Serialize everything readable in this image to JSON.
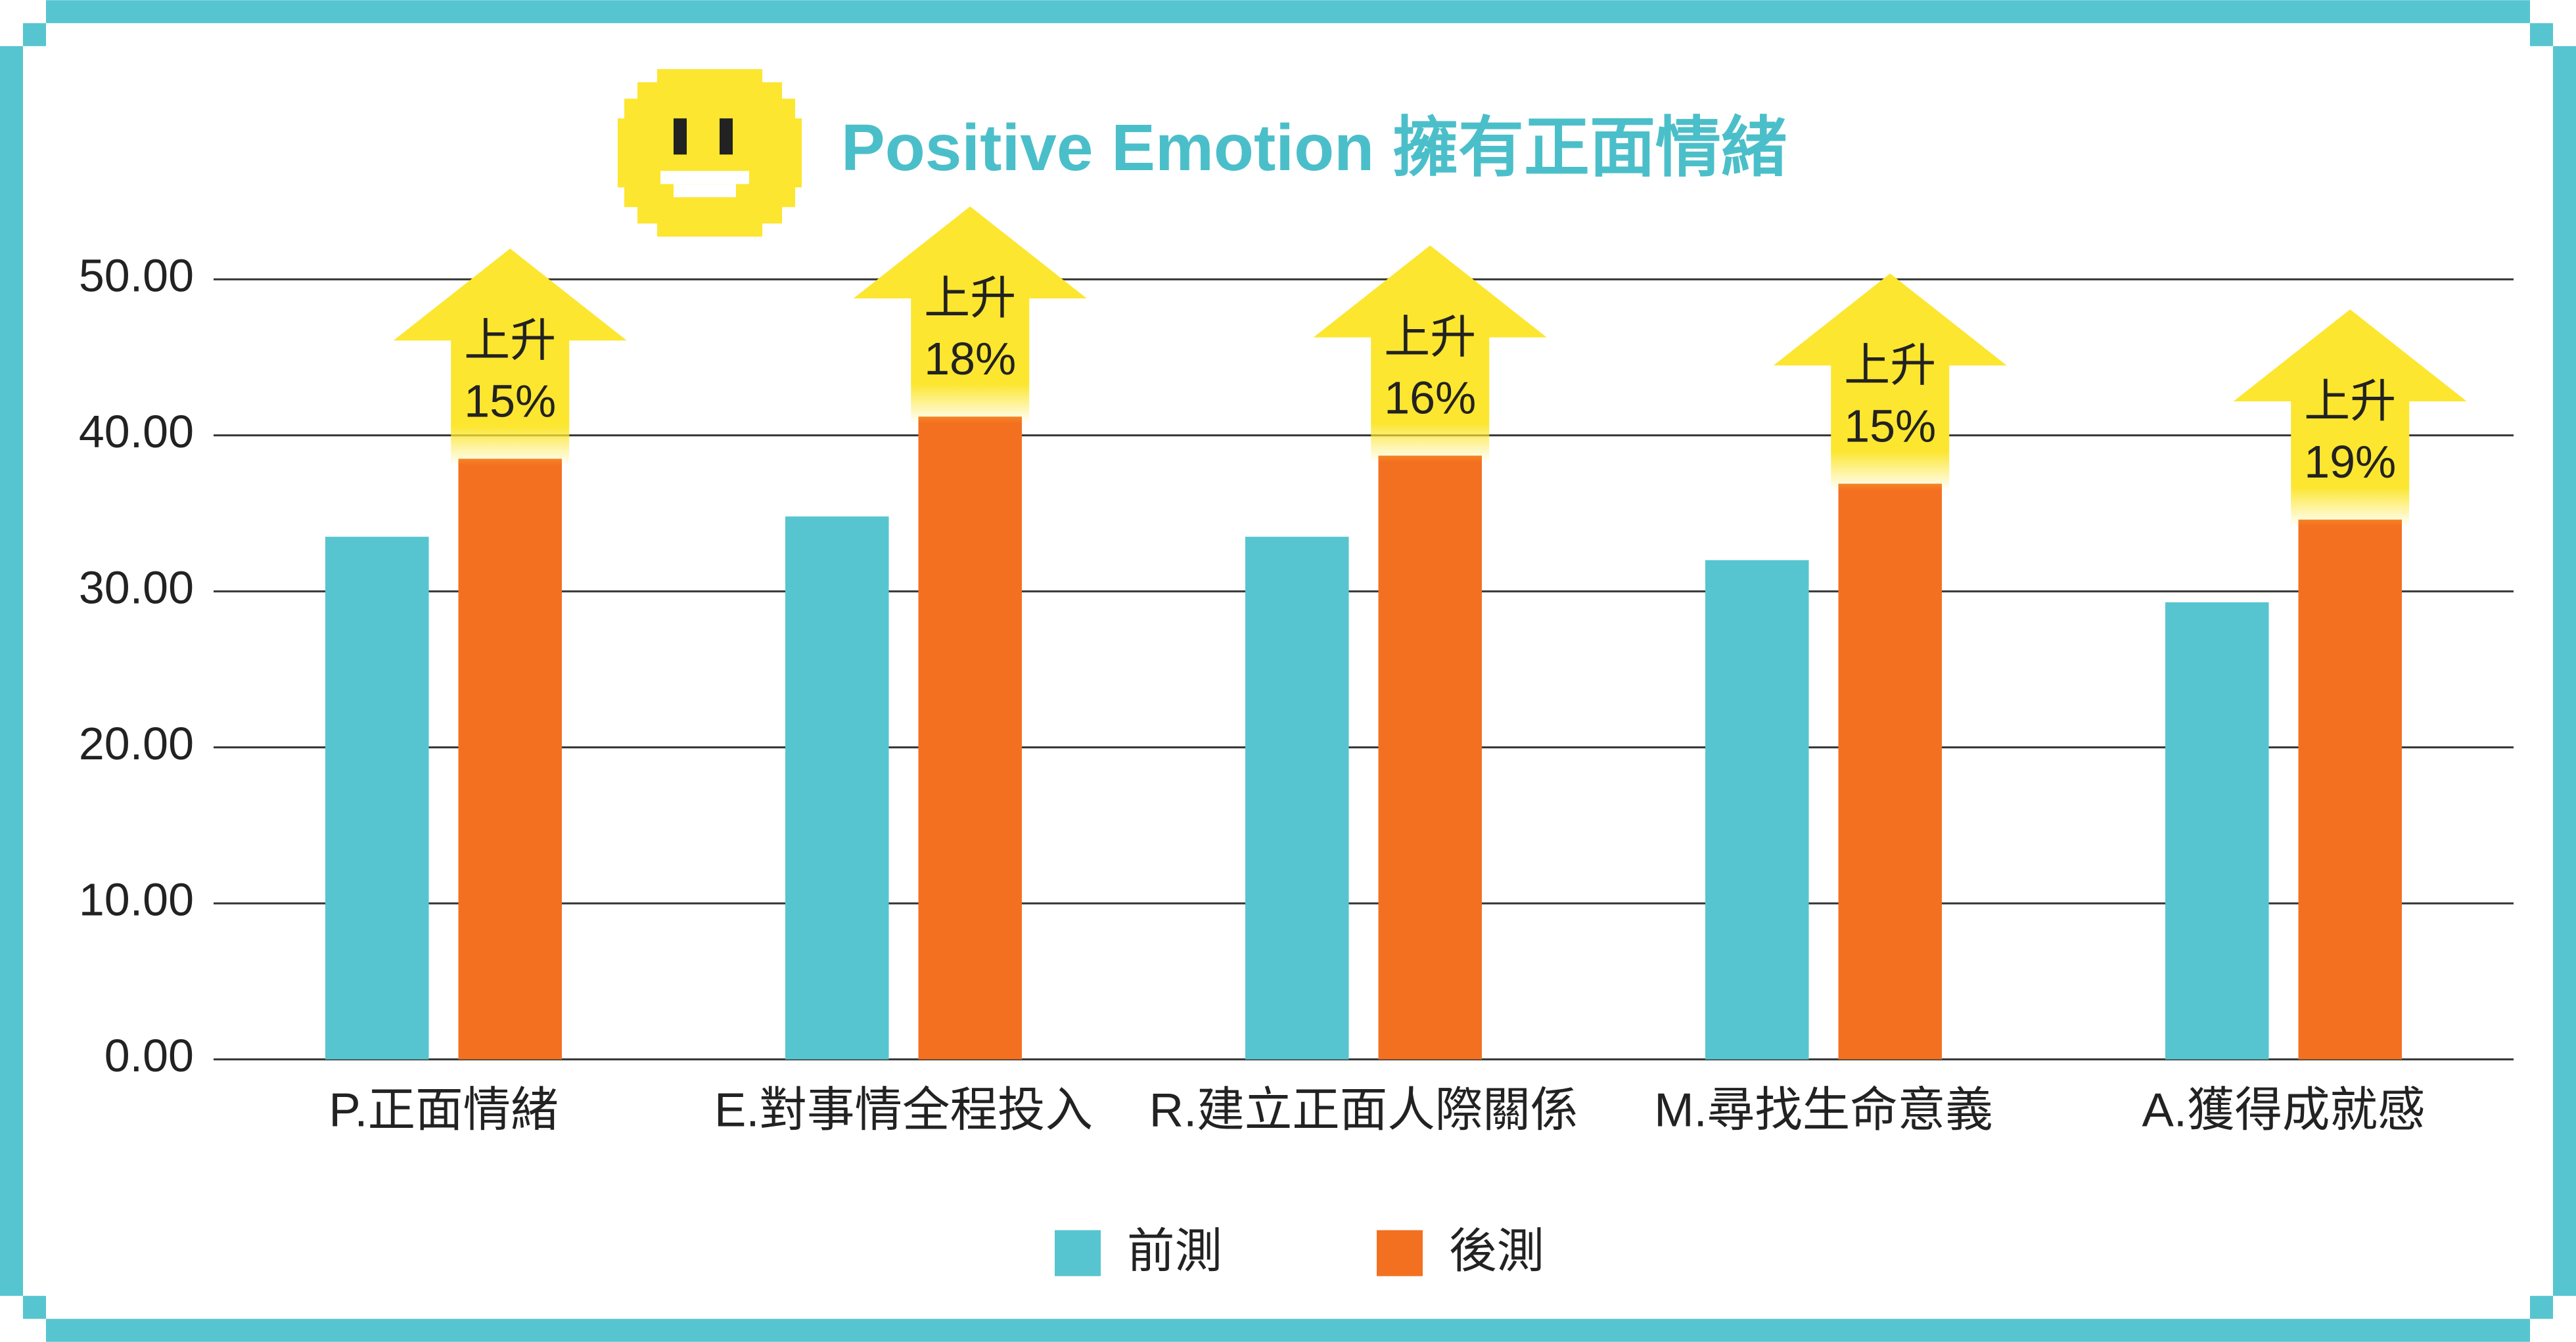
{
  "chart_data": {
    "type": "bar",
    "title": "Positive Emotion 擁有正面情緒",
    "categories": [
      "P.正面情緒",
      "E.對事情全程投入",
      "R.建立正面人際關係",
      "M.尋找生命意義",
      "A.獲得成就感"
    ],
    "series": [
      {
        "name": "前測",
        "color": "#56c5d0",
        "values": [
          33.5,
          34.8,
          33.5,
          32.0,
          29.3
        ]
      },
      {
        "name": "後測",
        "color": "#f37021",
        "values": [
          38.5,
          41.2,
          38.7,
          36.9,
          34.6
        ]
      }
    ],
    "annotations": [
      {
        "label": "上升",
        "change": "15%"
      },
      {
        "label": "上升",
        "change": "18%"
      },
      {
        "label": "上升",
        "change": "16%"
      },
      {
        "label": "上升",
        "change": "15%"
      },
      {
        "label": "上升",
        "change": "19%"
      }
    ],
    "ylim": [
      0,
      50
    ],
    "yticks": [
      {
        "value": 0,
        "label": "0.00"
      },
      {
        "value": 10,
        "label": "10.00"
      },
      {
        "value": 20,
        "label": "20.00"
      },
      {
        "value": 30,
        "label": "30.00"
      },
      {
        "value": 40,
        "label": "40.00"
      },
      {
        "value": 50,
        "label": "50.00"
      }
    ],
    "grid": true,
    "legend": "bottom"
  }
}
